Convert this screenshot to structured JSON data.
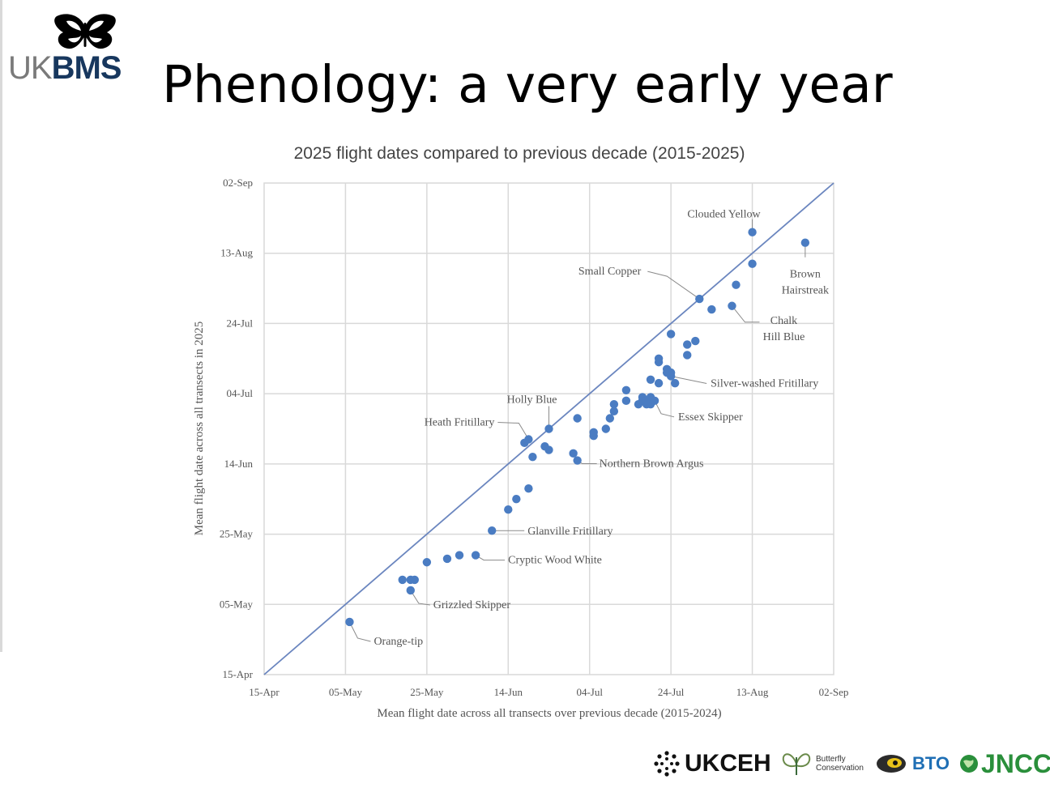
{
  "header": {
    "logo_uk": "UK",
    "logo_bms": "BMS",
    "title": "Phenology: a very early year"
  },
  "footer": {
    "ukceh": "UKCEH",
    "butterfly_conservation_1": "Butterfly",
    "butterfly_conservation_2": "Conservation",
    "bto": "BTO",
    "jncc": "JNCC"
  },
  "chart_data": {
    "type": "scatter",
    "title": "2025 flight dates compared to previous decade (2015-2025)",
    "xlabel": "Mean flight date across all transects over previous decade (2015-2024)",
    "ylabel": "Mean flight date across all transects in 2025",
    "tick_labels": [
      "15-Apr",
      "05-May",
      "25-May",
      "14-Jun",
      "04-Jul",
      "24-Jul",
      "13-Aug",
      "02-Sep"
    ],
    "xlim": [
      "2025-04-15",
      "2025-09-02"
    ],
    "ylim": [
      "2025-04-15",
      "2025-09-02"
    ],
    "grid": true,
    "reference_line": "1:1",
    "point_color": "#4a7cc2",
    "line_color": "#6b86bf",
    "points": [
      {
        "x": "2025-05-06",
        "y": "2025-04-30",
        "label": "Orange-tip"
      },
      {
        "x": "2025-05-19",
        "y": "2025-05-12"
      },
      {
        "x": "2025-05-21",
        "y": "2025-05-12"
      },
      {
        "x": "2025-05-22",
        "y": "2025-05-12"
      },
      {
        "x": "2025-05-21",
        "y": "2025-05-09",
        "label": "Grizzled Skipper"
      },
      {
        "x": "2025-05-25",
        "y": "2025-05-17"
      },
      {
        "x": "2025-05-30",
        "y": "2025-05-18"
      },
      {
        "x": "2025-06-02",
        "y": "2025-05-19"
      },
      {
        "x": "2025-06-06",
        "y": "2025-05-19",
        "label": "Cryptic Wood White"
      },
      {
        "x": "2025-06-10",
        "y": "2025-05-26",
        "label": "Glanville Fritillary"
      },
      {
        "x": "2025-06-14",
        "y": "2025-06-01"
      },
      {
        "x": "2025-06-16",
        "y": "2025-06-04"
      },
      {
        "x": "2025-06-19",
        "y": "2025-06-07"
      },
      {
        "x": "2025-06-18",
        "y": "2025-06-20"
      },
      {
        "x": "2025-06-19",
        "y": "2025-06-21",
        "label": "Heath Fritillary"
      },
      {
        "x": "2025-06-20",
        "y": "2025-06-16"
      },
      {
        "x": "2025-06-23",
        "y": "2025-06-19"
      },
      {
        "x": "2025-06-24",
        "y": "2025-06-18"
      },
      {
        "x": "2025-06-24",
        "y": "2025-06-24",
        "label": "Holly Blue"
      },
      {
        "x": "2025-06-30",
        "y": "2025-06-17"
      },
      {
        "x": "2025-07-01",
        "y": "2025-06-15",
        "label": "Northern Brown Argus"
      },
      {
        "x": "2025-07-01",
        "y": "2025-06-27"
      },
      {
        "x": "2025-07-05",
        "y": "2025-06-22"
      },
      {
        "x": "2025-07-05",
        "y": "2025-06-23"
      },
      {
        "x": "2025-07-08",
        "y": "2025-06-24"
      },
      {
        "x": "2025-07-09",
        "y": "2025-06-27"
      },
      {
        "x": "2025-07-10",
        "y": "2025-06-29"
      },
      {
        "x": "2025-07-10",
        "y": "2025-07-01"
      },
      {
        "x": "2025-07-13",
        "y": "2025-07-02"
      },
      {
        "x": "2025-07-13",
        "y": "2025-07-05"
      },
      {
        "x": "2025-07-16",
        "y": "2025-07-01"
      },
      {
        "x": "2025-07-17",
        "y": "2025-07-02"
      },
      {
        "x": "2025-07-17",
        "y": "2025-07-03"
      },
      {
        "x": "2025-07-18",
        "y": "2025-07-01"
      },
      {
        "x": "2025-07-18",
        "y": "2025-07-02"
      },
      {
        "x": "2025-07-19",
        "y": "2025-07-03"
      },
      {
        "x": "2025-07-19",
        "y": "2025-07-01"
      },
      {
        "x": "2025-07-20",
        "y": "2025-07-02",
        "label": "Essex Skipper"
      },
      {
        "x": "2025-07-19",
        "y": "2025-07-08"
      },
      {
        "x": "2025-07-21",
        "y": "2025-07-07"
      },
      {
        "x": "2025-07-21",
        "y": "2025-07-13"
      },
      {
        "x": "2025-07-21",
        "y": "2025-07-14"
      },
      {
        "x": "2025-07-23",
        "y": "2025-07-11"
      },
      {
        "x": "2025-07-23",
        "y": "2025-07-10"
      },
      {
        "x": "2025-07-24",
        "y": "2025-07-09",
        "label": "Silver-washed Fritillary"
      },
      {
        "x": "2025-07-24",
        "y": "2025-07-10"
      },
      {
        "x": "2025-07-25",
        "y": "2025-07-07"
      },
      {
        "x": "2025-07-24",
        "y": "2025-07-21"
      },
      {
        "x": "2025-07-28",
        "y": "2025-07-15"
      },
      {
        "x": "2025-07-28",
        "y": "2025-07-18"
      },
      {
        "x": "2025-07-30",
        "y": "2025-07-19"
      },
      {
        "x": "2025-07-31",
        "y": "2025-07-31",
        "label": "Small Copper"
      },
      {
        "x": "2025-08-03",
        "y": "2025-07-28"
      },
      {
        "x": "2025-08-08",
        "y": "2025-07-29",
        "label": "Chalk Hill Blue"
      },
      {
        "x": "2025-08-09",
        "y": "2025-08-04"
      },
      {
        "x": "2025-08-13",
        "y": "2025-08-10"
      },
      {
        "x": "2025-08-13",
        "y": "2025-08-19",
        "label": "Clouded Yellow"
      },
      {
        "x": "2025-08-26",
        "y": "2025-08-16",
        "label": "Brown Hairstreak"
      }
    ],
    "annotations": [
      {
        "text": "Orange-tip"
      },
      {
        "text": "Grizzled Skipper"
      },
      {
        "text": "Cryptic Wood White"
      },
      {
        "text": "Glanville Fritillary"
      },
      {
        "text": "Northern Brown Argus"
      },
      {
        "text": "Heath Fritillary"
      },
      {
        "text": "Holly Blue"
      },
      {
        "text": "Essex Skipper"
      },
      {
        "text": "Silver-washed Fritillary"
      },
      {
        "text": "Chalk Hill Blue"
      },
      {
        "text": "Small Copper"
      },
      {
        "text": "Clouded Yellow"
      },
      {
        "text": "Brown Hairstreak"
      }
    ]
  }
}
